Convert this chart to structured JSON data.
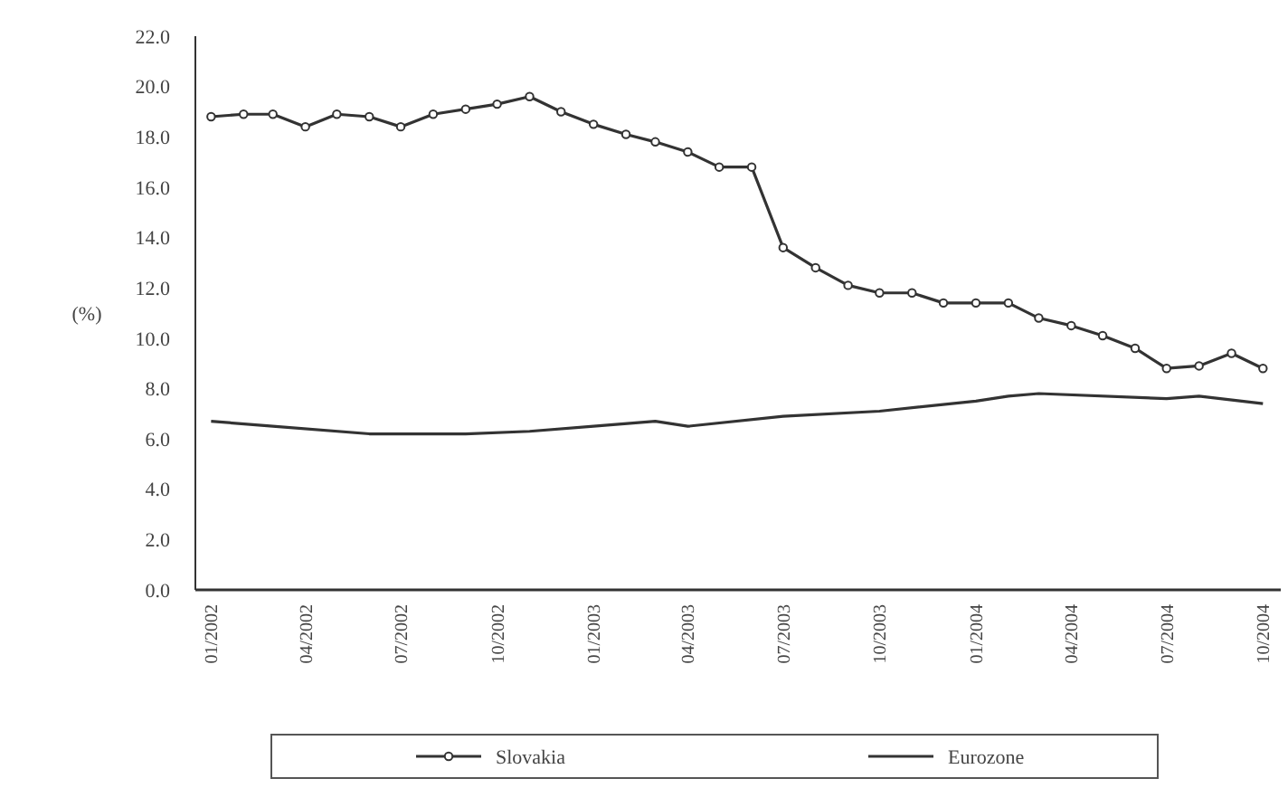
{
  "chart_data": {
    "type": "line",
    "ylabel": "(%)",
    "xlim": [
      "2001-12-17",
      "2004-10-18"
    ],
    "xticks": [
      {
        "value": "2002-01",
        "label": "01/2002"
      },
      {
        "value": "2002-04",
        "label": "04/2002"
      },
      {
        "value": "2002-07",
        "label": "07/2002"
      },
      {
        "value": "2002-10",
        "label": "10/2002"
      },
      {
        "value": "2003-01",
        "label": "01/2003"
      },
      {
        "value": "2003-04",
        "label": "04/2003"
      },
      {
        "value": "2003-07",
        "label": "07/2003"
      },
      {
        "value": "2003-10",
        "label": "10/2003"
      },
      {
        "value": "2004-01",
        "label": "01/2004"
      },
      {
        "value": "2004-04",
        "label": "04/2004"
      },
      {
        "value": "2004-07",
        "label": "07/2004"
      },
      {
        "value": "2004-10",
        "label": "10/2004"
      }
    ],
    "ylim": [
      0,
      22
    ],
    "yticks": [
      {
        "value": 0,
        "label": "0.0"
      },
      {
        "value": 2,
        "label": "2.0"
      },
      {
        "value": 4,
        "label": "4.0"
      },
      {
        "value": 6,
        "label": "6.0"
      },
      {
        "value": 8,
        "label": "8.0"
      },
      {
        "value": 10,
        "label": "10.0"
      },
      {
        "value": 12,
        "label": "12.0"
      },
      {
        "value": 14,
        "label": "14.0"
      },
      {
        "value": 16,
        "label": "16.0"
      },
      {
        "value": 18,
        "label": "18.0"
      },
      {
        "value": 20,
        "label": "20.0"
      },
      {
        "value": 22,
        "label": "22.0"
      }
    ],
    "grid": false,
    "legend": "bottom",
    "series": [
      {
        "name": "Slovakia",
        "color": "#333333",
        "marker": "circle",
        "x": [
          "2002-01",
          "2002-02",
          "2002-03",
          "2002-04",
          "2002-05",
          "2002-06",
          "2002-07",
          "2002-08",
          "2002-09",
          "2002-10",
          "2002-11",
          "2002-12",
          "2003-01",
          "2003-02",
          "2003-03",
          "2003-04",
          "2003-05",
          "2003-06",
          "2003-07",
          "2003-08",
          "2003-09",
          "2003-10",
          "2003-11",
          "2003-12",
          "2004-01",
          "2004-02",
          "2004-03",
          "2004-04",
          "2004-05",
          "2004-06",
          "2004-07",
          "2004-08",
          "2004-09",
          "2004-10"
        ],
        "values": [
          18.8,
          18.9,
          18.9,
          18.4,
          18.9,
          18.8,
          18.4,
          18.9,
          19.1,
          19.3,
          19.6,
          19.0,
          18.5,
          18.1,
          17.8,
          17.4,
          16.8,
          16.8,
          13.6,
          12.8,
          12.1,
          11.8,
          11.8,
          11.4,
          11.4,
          11.4,
          10.8,
          10.5,
          10.1,
          9.6,
          8.8,
          8.9,
          9.4,
          8.8
        ]
      },
      {
        "name": "Eurozone",
        "color": "#333333",
        "marker": "none",
        "x": [
          "2002-01",
          "2002-03",
          "2002-06",
          "2002-09",
          "2002-11",
          "2003-01",
          "2003-03",
          "2003-04",
          "2003-07",
          "2003-10",
          "2004-01",
          "2004-02",
          "2004-03",
          "2004-07",
          "2004-08",
          "2004-10"
        ],
        "values": [
          6.7,
          6.5,
          6.2,
          6.2,
          6.3,
          6.5,
          6.7,
          6.5,
          6.9,
          7.1,
          7.5,
          7.7,
          7.8,
          7.6,
          7.7,
          7.4
        ]
      }
    ]
  }
}
